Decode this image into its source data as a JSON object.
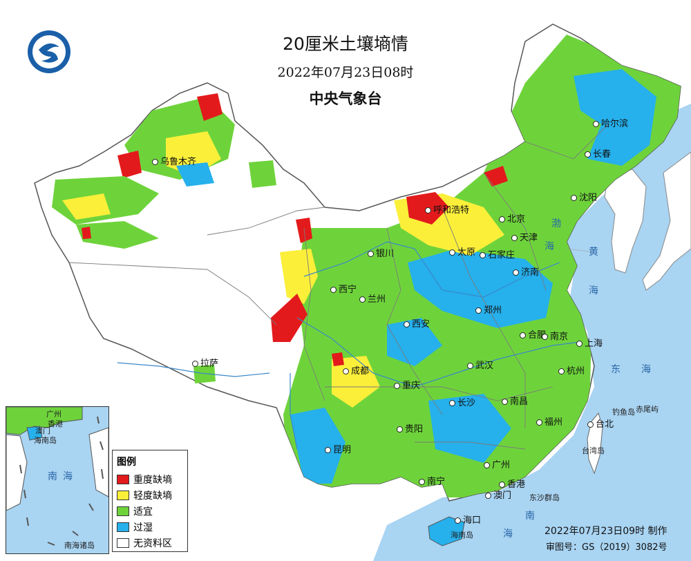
{
  "map": {
    "title": "20厘米土壤墒情",
    "time": "2022年07月23日08时",
    "agency": "中央气象台"
  },
  "legend": {
    "title": "图例",
    "items": [
      {
        "label": "重度缺墒",
        "color": "#e31a1c"
      },
      {
        "label": "轻度缺墒",
        "color": "#fbef3a"
      },
      {
        "label": "适宜",
        "color": "#6ed33b"
      },
      {
        "label": "过湿",
        "color": "#26b0ec"
      },
      {
        "label": "无资料区",
        "color": "#ffffff"
      }
    ]
  },
  "cities": [
    {
      "name": "哈尔滨"
    },
    {
      "name": "长春"
    },
    {
      "name": "沈阳"
    },
    {
      "name": "呼和浩特"
    },
    {
      "name": "北京"
    },
    {
      "name": "天津"
    },
    {
      "name": "乌鲁木齐"
    },
    {
      "name": "银川"
    },
    {
      "name": "太原"
    },
    {
      "name": "石家庄"
    },
    {
      "name": "济南"
    },
    {
      "name": "西宁"
    },
    {
      "name": "兰州"
    },
    {
      "name": "郑州"
    },
    {
      "name": "西安"
    },
    {
      "name": "合肥"
    },
    {
      "name": "南京"
    },
    {
      "name": "上海"
    },
    {
      "name": "拉萨"
    },
    {
      "name": "成都"
    },
    {
      "name": "武汉"
    },
    {
      "name": "杭州"
    },
    {
      "name": "重庆"
    },
    {
      "name": "长沙"
    },
    {
      "name": "南昌"
    },
    {
      "name": "福州"
    },
    {
      "name": "台北"
    },
    {
      "name": "贵阳"
    },
    {
      "name": "昆明"
    },
    {
      "name": "广州"
    },
    {
      "name": "南宁"
    },
    {
      "name": "香港"
    },
    {
      "name": "澳门"
    },
    {
      "name": "海口"
    }
  ],
  "seas": [
    "渤",
    "海",
    "黄",
    "海",
    "东",
    "海",
    "南",
    "海"
  ],
  "islands": [
    "钓鱼岛",
    "赤尾屿",
    "台湾岛",
    "东沙群岛",
    "海南岛"
  ],
  "inset": {
    "label": "南海诸岛",
    "cities": [
      "广州",
      "香港",
      "澳门",
      "海南岛"
    ],
    "sea": [
      "南",
      "海"
    ]
  },
  "footer": {
    "made": "2022年07月23日09时 制作",
    "approval": "审图号：GS（2019）3082号"
  }
}
